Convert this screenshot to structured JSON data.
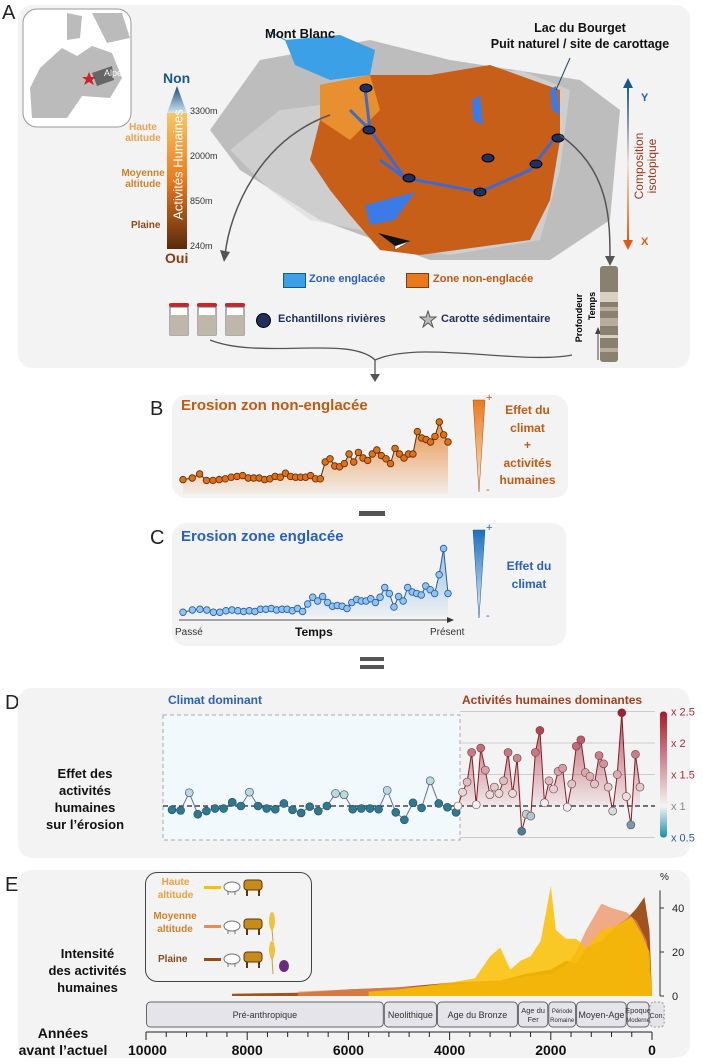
{
  "panel_labels": {
    "a": "A",
    "b": "B",
    "c": "C",
    "d": "D",
    "e": "E"
  },
  "panel_a": {
    "map_label": "Alpes",
    "mont_blanc": "Mont Blanc",
    "lake_title": "Lac du Bourget",
    "lake_subtitle": "Puit naturel / site de carottage",
    "scale_top": "Non",
    "scale_bottom": "Oui",
    "scale_title": "Activités Humaines",
    "altitudes": [
      "3300m",
      "2000m",
      "850m",
      "240m"
    ],
    "zones": {
      "haute": "Haute altitude",
      "moyenne": "Moyenne altitude",
      "plaine": "Plaine"
    },
    "legend_glaciated": "Zone englacée",
    "legend_nonglaciated": "Zone non-englacée",
    "legend_samples": "Echantillons rivières",
    "legend_core": "Carotte sédimentaire",
    "isotopic_title": "Composition isotopique",
    "axis_y": "Y",
    "axis_x": "X",
    "core_depth": "Profondeur",
    "core_time": "Temps",
    "colors": {
      "glaciated": "#3ca0e6",
      "nonglaciated": "#e87a1e",
      "samples": "#1f2f5e"
    }
  },
  "panel_b": {
    "title": "Erosion zon non-englacée",
    "effect_lines": [
      "Effet du",
      "climat",
      "+",
      "activités",
      "humaines"
    ],
    "plus": "+",
    "minus": "-",
    "values": [
      0.18,
      0.2,
      0.25,
      0.17,
      0.17,
      0.18,
      0.19,
      0.21,
      0.22,
      0.23,
      0.2,
      0.2,
      0.2,
      0.18,
      0.19,
      0.22,
      0.21,
      0.26,
      0.22,
      0.21,
      0.21,
      0.21,
      0.23,
      0.19,
      0.19,
      0.4,
      0.44,
      0.35,
      0.34,
      0.38,
      0.5,
      0.4,
      0.52,
      0.45,
      0.42,
      0.5,
      0.55,
      0.48,
      0.44,
      0.38,
      0.57,
      0.5,
      0.45,
      0.5,
      0.5,
      0.78,
      0.7,
      0.68,
      0.65,
      0.72,
      0.9,
      0.74,
      0.65
    ]
  },
  "operator_minus": "–",
  "panel_c": {
    "title": "Erosion zone englacée",
    "effect_lines": [
      "Effet du",
      "climat"
    ],
    "plus": "+",
    "minus": "-",
    "x_start": "Passé",
    "x_label": "Temps",
    "x_end": "Présent",
    "values": [
      0.05,
      0.08,
      0.09,
      0.08,
      0.05,
      0.05,
      0.07,
      0.08,
      0.07,
      0.06,
      0.07,
      0.06,
      0.09,
      0.09,
      0.1,
      0.08,
      0.09,
      0.09,
      0.07,
      0.1,
      0.06,
      0.16,
      0.25,
      0.2,
      0.26,
      0.18,
      0.13,
      0.14,
      0.13,
      0.1,
      0.18,
      0.22,
      0.2,
      0.2,
      0.23,
      0.18,
      0.25,
      0.38,
      0.3,
      0.12,
      0.26,
      0.2,
      0.38,
      0.32,
      0.3,
      0.28,
      0.4,
      0.35,
      0.3,
      0.55,
      0.9,
      0.3
    ]
  },
  "operator_equals": "=",
  "panel_d": {
    "row_label": [
      "Effet des",
      "activités",
      "humaines",
      "sur l’érosion"
    ],
    "chart_data": {
      "type": "line",
      "region_left": "Climat dominant",
      "region_right": "Activités humaines dominantes",
      "y_ticks": [
        "x 2.5",
        "x 2",
        "x 1.5",
        "x 1",
        "x 0.5"
      ],
      "ylim": [
        0.5,
        2.5
      ],
      "reference": 1,
      "series": [
        {
          "values": [
            0.94,
            0.93,
            1.21,
            0.87,
            0.92,
            0.96,
            0.96,
            1.06,
            1.0,
            1.22,
            1.0,
            0.96,
            0.95,
            1.04,
            0.94,
            0.89,
            0.99,
            0.92,
            1.0,
            1.2,
            1.18,
            0.95,
            0.96,
            0.96,
            0.95,
            1.25,
            0.9,
            0.78,
            1.05,
            0.97,
            1.4,
            1.04,
            0.98,
            0.9
          ]
        },
        {
          "values": [
            1.0,
            1.22,
            1.38,
            1.85,
            1.02,
            1.92,
            1.57,
            1.18,
            1.3,
            1.2,
            1.4,
            1.85,
            1.2,
            1.76,
            0.6,
            0.87,
            0.84,
            1.85,
            2.2,
            1.05,
            1.4,
            1.27,
            1.55,
            1.6,
            0.98,
            1.35,
            1.95,
            2.05,
            1.53,
            1.47,
            1.35,
            1.8,
            1.67,
            1.3,
            0.92,
            1.5,
            2.48,
            1.15,
            0.7,
            1.82,
            1.3
          ]
        }
      ],
      "colors": {
        "high": "#a8182a",
        "low": "#1890a8",
        "neutral": "#ffffff"
      }
    }
  },
  "panel_e": {
    "row_label": [
      "Intensité",
      "des activités",
      "humaines"
    ],
    "legend": [
      {
        "label": "Haute altitude",
        "color": "#f9c000",
        "icons": [
          "sheep-icon",
          "cow-icon"
        ]
      },
      {
        "label": "Moyenne altitude",
        "color": "#ee8a55",
        "icons": [
          "sheep-icon",
          "cow-icon",
          "wheat-icon"
        ]
      },
      {
        "label": "Plaine",
        "color": "#9a4a12",
        "icons": [
          "sheep-icon",
          "cow-icon",
          "wheat-icon",
          "plum-icon"
        ]
      }
    ],
    "x_title": [
      "Années",
      "avant l’actuel"
    ],
    "chart_data": {
      "type": "area",
      "x_label": "Années avant l’actuel",
      "y_label": "%",
      "xlim": [
        10000,
        0
      ],
      "ylim": [
        0,
        50
      ],
      "x_ticks": [
        10000,
        8000,
        6000,
        4000,
        2000,
        0
      ],
      "y_ticks": [
        0,
        20,
        40
      ],
      "series": [
        {
          "name": "Plaine",
          "color": "#9a4a12",
          "x": [
            8300,
            7000,
            6000,
            5000,
            4000,
            3000,
            2500,
            2000,
            1700,
            1500,
            1300,
            1000,
            700,
            500,
            300,
            150,
            50,
            0
          ],
          "y": [
            1,
            1.5,
            3,
            4,
            6,
            7,
            10,
            12,
            16,
            15,
            22,
            25,
            32,
            35,
            40,
            45,
            30,
            0
          ]
        },
        {
          "name": "Moyenne altitude",
          "color": "#ee8a55",
          "x": [
            7000,
            6000,
            4000,
            3000,
            2500,
            2000,
            1700,
            1500,
            1300,
            1000,
            800,
            500,
            300,
            100,
            0
          ],
          "y": [
            2,
            3,
            5,
            7,
            9,
            10,
            14,
            20,
            30,
            42,
            40,
            38,
            34,
            25,
            0
          ]
        },
        {
          "name": "Haute altitude",
          "color": "#f9c000",
          "x": [
            5600,
            5000,
            4000,
            3500,
            3200,
            3000,
            2800,
            2600,
            2400,
            2200,
            2000,
            1900,
            1700,
            1500,
            1300,
            1000,
            700,
            400,
            200,
            50,
            0
          ],
          "y": [
            2,
            3,
            6,
            8,
            18,
            22,
            12,
            16,
            18,
            25,
            50,
            30,
            26,
            26,
            22,
            30,
            32,
            36,
            28,
            20,
            0
          ]
        }
      ],
      "periods": [
        {
          "label": "Pré-anthropique",
          "from": 10000,
          "to": 5300
        },
        {
          "label": "Neolithique",
          "from": 5300,
          "to": 4250
        },
        {
          "label": "Age du Bronze",
          "from": 4250,
          "to": 2650
        },
        {
          "label": "Age du Fer",
          "from": 2650,
          "to": 2050
        },
        {
          "label": "Période Romaine",
          "from": 2050,
          "to": 1500
        },
        {
          "label": "Moyen-Age",
          "from": 1500,
          "to": 500
        },
        {
          "label": "Epoque Moderne",
          "from": 500,
          "to": 50
        },
        {
          "label": "Con.",
          "from": 50,
          "to": -250
        }
      ]
    }
  }
}
